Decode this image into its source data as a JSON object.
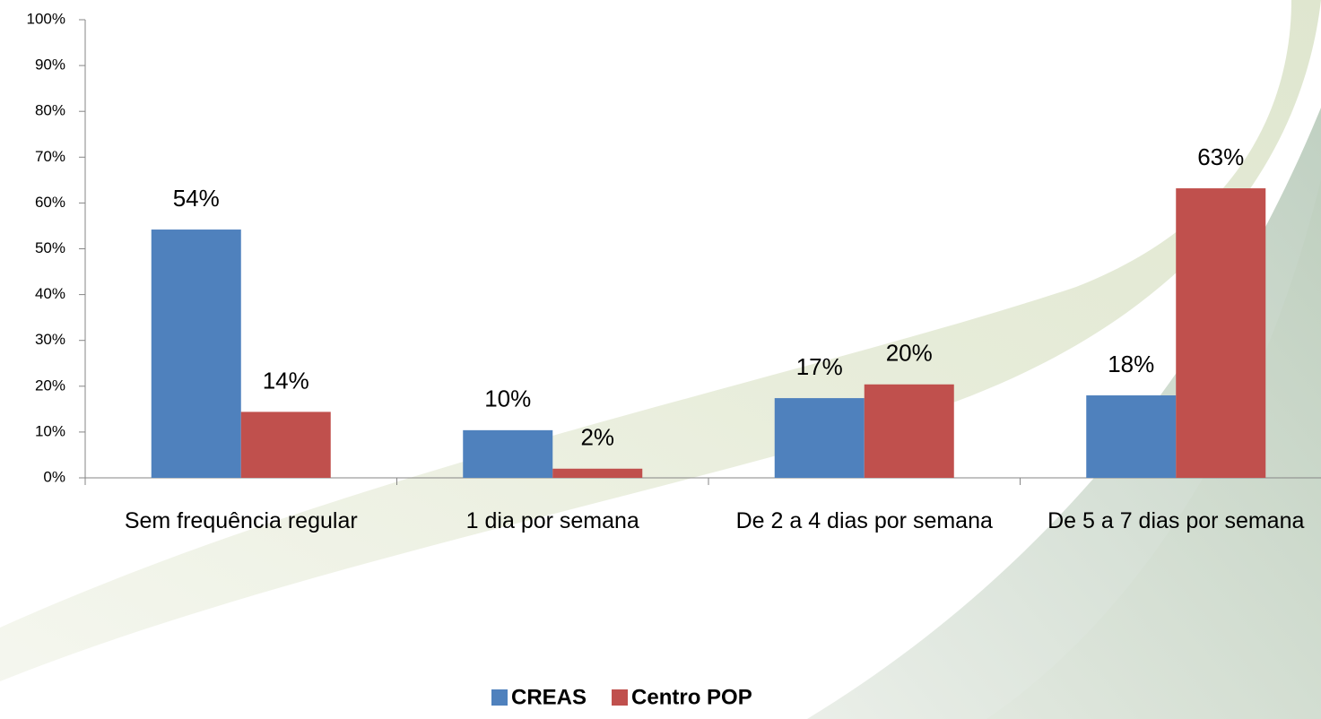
{
  "chart_data": {
    "type": "bar",
    "categories": [
      "Sem frequência regular",
      "1 dia por semana",
      "De 2 a 4 dias por semana",
      "De 5 a 7 dias por semana"
    ],
    "series": [
      {
        "name": "CREAS",
        "color": "#4f81bd",
        "values": [
          54.2,
          10.4,
          17.4,
          18
        ],
        "value_labels": [
          "54%",
          "10%",
          "17%",
          "18%"
        ]
      },
      {
        "name": "Centro POP",
        "color": "#c0504d",
        "values": [
          14.4,
          2,
          20.4,
          63.2
        ],
        "value_labels": [
          "14%",
          "2%",
          "20%",
          "63%"
        ]
      }
    ],
    "ylim": [
      0,
      100
    ],
    "yticks": [
      {
        "value": 0,
        "label": "0%"
      },
      {
        "value": 10,
        "label": "10%"
      },
      {
        "value": 20,
        "label": "20%"
      },
      {
        "value": 30,
        "label": "30%"
      },
      {
        "value": 40,
        "label": "40%"
      },
      {
        "value": 50,
        "label": "50%"
      },
      {
        "value": 60,
        "label": "60%"
      },
      {
        "value": 70,
        "label": "70%"
      },
      {
        "value": 80,
        "label": "80%"
      },
      {
        "value": 90,
        "label": "90%"
      },
      {
        "value": 100,
        "label": "100%"
      }
    ],
    "legend": "bottom"
  }
}
